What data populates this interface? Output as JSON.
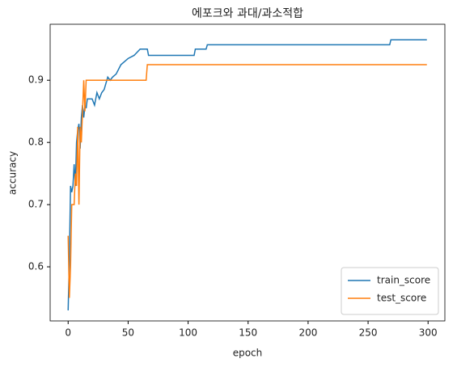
{
  "chart_data": {
    "type": "line",
    "title": "에포크와 과대/과소적합",
    "x_label": "epoch",
    "y_label": "accuracy",
    "xlim": [
      -15,
      314
    ],
    "ylim": [
      0.513,
      0.99
    ],
    "xticks": [
      0,
      50,
      100,
      150,
      200,
      250,
      300
    ],
    "yticks": [
      0.6,
      0.7,
      0.8,
      0.9
    ],
    "legend": "lower right",
    "series": [
      {
        "name": "train_score",
        "color": "#1f77b4",
        "x": [
          0,
          1,
          2,
          3,
          4,
          5,
          6,
          7,
          8,
          9,
          10,
          11,
          12,
          13,
          14,
          15,
          16,
          20,
          22,
          24,
          26,
          28,
          30,
          33,
          35,
          37,
          40,
          44,
          50,
          55,
          60,
          66,
          67,
          105,
          106,
          115,
          116,
          268,
          269,
          299
        ],
        "values": [
          0.53,
          0.61,
          0.73,
          0.72,
          0.73,
          0.765,
          0.73,
          0.8,
          0.82,
          0.83,
          0.79,
          0.84,
          0.86,
          0.84,
          0.86,
          0.855,
          0.87,
          0.87,
          0.86,
          0.88,
          0.87,
          0.88,
          0.885,
          0.905,
          0.9,
          0.905,
          0.91,
          0.925,
          0.935,
          0.94,
          0.95,
          0.95,
          0.94,
          0.94,
          0.95,
          0.95,
          0.957,
          0.957,
          0.965,
          0.965
        ]
      },
      {
        "name": "test_score",
        "color": "#ff7f0e",
        "x": [
          0,
          1,
          2,
          3,
          5,
          6,
          7,
          8,
          9,
          10,
          11,
          12,
          13,
          14,
          15,
          65,
          66,
          299
        ],
        "values": [
          0.65,
          0.55,
          0.6,
          0.7,
          0.7,
          0.75,
          0.73,
          0.825,
          0.7,
          0.825,
          0.8,
          0.85,
          0.9,
          0.85,
          0.9,
          0.9,
          0.925,
          0.925
        ]
      }
    ]
  }
}
